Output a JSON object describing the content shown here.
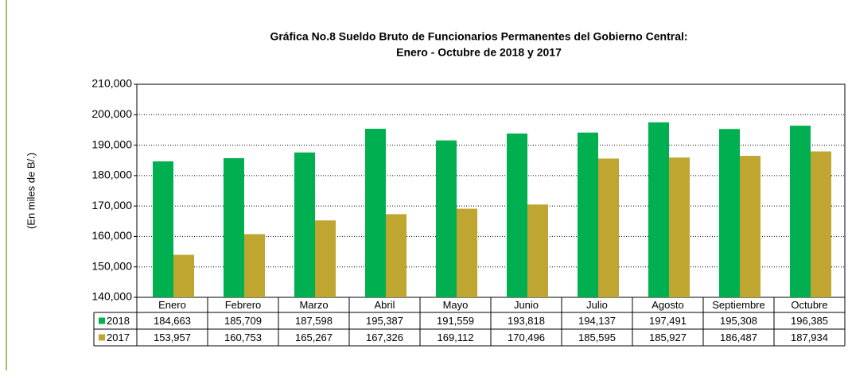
{
  "chart_data": {
    "type": "bar",
    "title": "Gráfica No.8 Sueldo Bruto de Funcionarios Permanentes del Gobierno Central:",
    "subtitle": "Enero - Octubre de 2018 y 2017",
    "y_label": "(En miles de B/.)",
    "categories": [
      "Enero",
      "Febrero",
      "Marzo",
      "Abril",
      "Mayo",
      "Junio",
      "Julio",
      "Agosto",
      "Septiembre",
      "Octubre"
    ],
    "series": [
      {
        "name": "2018",
        "color": "#00b050",
        "values": [
          184663,
          185709,
          187598,
          195387,
          191559,
          193818,
          194137,
          197491,
          195308,
          196385
        ],
        "value_labels": [
          "184,663",
          "185,709",
          "187,598",
          "195,387",
          "191,559",
          "193,818",
          "194,137",
          "197,491",
          "195,308",
          "196,385"
        ]
      },
      {
        "name": "2017",
        "color": "#bfa631",
        "values": [
          153957,
          160753,
          165267,
          167326,
          169112,
          170496,
          185595,
          185927,
          186487,
          187934
        ],
        "value_labels": [
          "153,957",
          "160,753",
          "165,267",
          "167,326",
          "169,112",
          "170,496",
          "185,595",
          "185,927",
          "186,487",
          "187,934"
        ]
      }
    ],
    "ylim": [
      140000,
      210000
    ],
    "yticks": [
      {
        "value": 140000,
        "label": "140,000"
      },
      {
        "value": 150000,
        "label": "150,000"
      },
      {
        "value": 160000,
        "label": "160,000"
      },
      {
        "value": 170000,
        "label": "170,000"
      },
      {
        "value": 180000,
        "label": "180,000"
      },
      {
        "value": 190000,
        "label": "190,000"
      },
      {
        "value": 200000,
        "label": "200,000"
      },
      {
        "value": 210000,
        "label": "210,000"
      }
    ],
    "grid": true
  }
}
